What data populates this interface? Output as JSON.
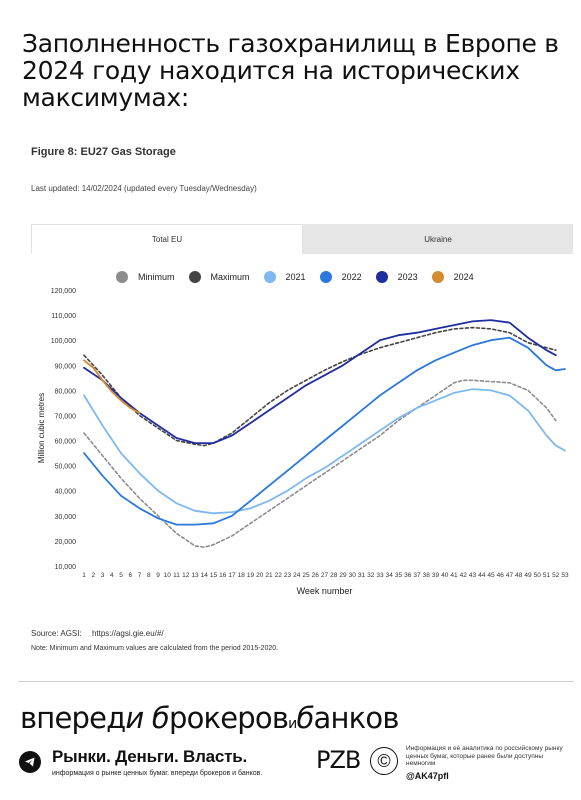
{
  "headline": "Заполненность газохранилищ в Европе в 2024 году находится на исторических максимумах:",
  "figure": {
    "title": "Figure 8: EU27 Gas Storage",
    "last_updated": "Last updated: 14/02/2024  (updated every Tuesday/Wednesday)",
    "tabs": [
      {
        "label": "Total EU",
        "active": true
      },
      {
        "label": "Ukraine",
        "active": false
      }
    ],
    "source_label": "Source: AGSI:",
    "source_url": "https://agsi.gie.eu/#/",
    "note": "Note: Minimum and Maximum values are calculated from the period 2015-2020."
  },
  "chart_data": {
    "type": "line",
    "xlabel": "Week number",
    "ylabel": "Million cubic metres",
    "xlim": [
      1,
      53
    ],
    "ylim": [
      10000,
      120000
    ],
    "yticks": [
      "120,000",
      "110,000",
      "100,000",
      "90,000",
      "80,000",
      "70,000",
      "60,000",
      "50,000",
      "40,000",
      "30,000",
      "20,000",
      "10,000"
    ],
    "grid": false,
    "legend_position": "top",
    "series": [
      {
        "name": "Minimum",
        "color": "#8c8c8c",
        "dashed": true,
        "points": [
          [
            1,
            63000
          ],
          [
            3,
            54000
          ],
          [
            5,
            45000
          ],
          [
            7,
            37000
          ],
          [
            9,
            30000
          ],
          [
            11,
            23000
          ],
          [
            13,
            18000
          ],
          [
            14,
            17500
          ],
          [
            15,
            18500
          ],
          [
            17,
            22000
          ],
          [
            19,
            27000
          ],
          [
            21,
            32000
          ],
          [
            23,
            37000
          ],
          [
            25,
            42000
          ],
          [
            27,
            47000
          ],
          [
            29,
            52000
          ],
          [
            31,
            57000
          ],
          [
            33,
            62000
          ],
          [
            35,
            68000
          ],
          [
            37,
            73000
          ],
          [
            39,
            78000
          ],
          [
            41,
            83000
          ],
          [
            42,
            84000
          ],
          [
            43,
            84000
          ],
          [
            45,
            83500
          ],
          [
            47,
            83000
          ],
          [
            49,
            80000
          ],
          [
            51,
            73000
          ],
          [
            52,
            68000
          ]
        ]
      },
      {
        "name": "Maximum",
        "color": "#444444",
        "dashed": true,
        "points": [
          [
            1,
            94000
          ],
          [
            3,
            86000
          ],
          [
            5,
            77000
          ],
          [
            7,
            70000
          ],
          [
            9,
            65000
          ],
          [
            11,
            60000
          ],
          [
            13,
            58500
          ],
          [
            14,
            58000
          ],
          [
            15,
            59000
          ],
          [
            17,
            63000
          ],
          [
            19,
            69000
          ],
          [
            21,
            75000
          ],
          [
            23,
            80000
          ],
          [
            25,
            84000
          ],
          [
            27,
            88000
          ],
          [
            29,
            91500
          ],
          [
            31,
            94500
          ],
          [
            33,
            97000
          ],
          [
            35,
            99000
          ],
          [
            37,
            101000
          ],
          [
            39,
            103000
          ],
          [
            41,
            104500
          ],
          [
            43,
            105000
          ],
          [
            45,
            104500
          ],
          [
            47,
            103000
          ],
          [
            49,
            99000
          ],
          [
            51,
            97000
          ],
          [
            52,
            96000
          ]
        ]
      },
      {
        "name": "2021",
        "color": "#7db9ef",
        "dashed": false,
        "points": [
          [
            1,
            78000
          ],
          [
            3,
            66000
          ],
          [
            5,
            55000
          ],
          [
            7,
            47000
          ],
          [
            9,
            40000
          ],
          [
            11,
            35000
          ],
          [
            13,
            32000
          ],
          [
            15,
            31000
          ],
          [
            17,
            31500
          ],
          [
            19,
            33000
          ],
          [
            21,
            36000
          ],
          [
            23,
            40000
          ],
          [
            25,
            45000
          ],
          [
            27,
            49000
          ],
          [
            29,
            54000
          ],
          [
            31,
            59000
          ],
          [
            33,
            64000
          ],
          [
            35,
            69000
          ],
          [
            37,
            73000
          ],
          [
            39,
            76000
          ],
          [
            41,
            79000
          ],
          [
            43,
            80500
          ],
          [
            45,
            80000
          ],
          [
            47,
            78000
          ],
          [
            49,
            72000
          ],
          [
            51,
            62000
          ],
          [
            52,
            58000
          ],
          [
            53,
            56000
          ]
        ]
      },
      {
        "name": "2022",
        "color": "#2a78dd",
        "dashed": false,
        "points": [
          [
            1,
            55000
          ],
          [
            3,
            46000
          ],
          [
            5,
            38000
          ],
          [
            7,
            33000
          ],
          [
            9,
            29000
          ],
          [
            11,
            26500
          ],
          [
            13,
            26500
          ],
          [
            15,
            27000
          ],
          [
            17,
            30000
          ],
          [
            19,
            36000
          ],
          [
            21,
            42000
          ],
          [
            23,
            48000
          ],
          [
            25,
            54000
          ],
          [
            27,
            60000
          ],
          [
            29,
            66000
          ],
          [
            31,
            72000
          ],
          [
            33,
            78000
          ],
          [
            35,
            83000
          ],
          [
            37,
            88000
          ],
          [
            39,
            92000
          ],
          [
            41,
            95000
          ],
          [
            43,
            98000
          ],
          [
            45,
            100000
          ],
          [
            47,
            101000
          ],
          [
            49,
            97000
          ],
          [
            51,
            90000
          ],
          [
            52,
            88000
          ],
          [
            53,
            88500
          ]
        ]
      },
      {
        "name": "2023",
        "color": "#1f2d9e",
        "dashed": false,
        "points": [
          [
            1,
            89000
          ],
          [
            3,
            84000
          ],
          [
            5,
            77000
          ],
          [
            7,
            71000
          ],
          [
            9,
            66000
          ],
          [
            11,
            61000
          ],
          [
            13,
            59000
          ],
          [
            15,
            59000
          ],
          [
            17,
            62000
          ],
          [
            19,
            67000
          ],
          [
            21,
            72000
          ],
          [
            23,
            77000
          ],
          [
            25,
            82000
          ],
          [
            27,
            86000
          ],
          [
            29,
            90000
          ],
          [
            31,
            95000
          ],
          [
            33,
            100000
          ],
          [
            35,
            102000
          ],
          [
            37,
            103000
          ],
          [
            39,
            104500
          ],
          [
            41,
            106000
          ],
          [
            43,
            107500
          ],
          [
            45,
            108000
          ],
          [
            47,
            107000
          ],
          [
            49,
            101000
          ],
          [
            51,
            96000
          ],
          [
            52,
            94000
          ]
        ]
      },
      {
        "name": "2024",
        "color": "#d48a2e",
        "dashed": false,
        "points": [
          [
            1,
            92000
          ],
          [
            2,
            89000
          ],
          [
            3,
            84000
          ],
          [
            4,
            79500
          ],
          [
            5,
            76000
          ],
          [
            6,
            73000
          ],
          [
            7,
            71000
          ]
        ]
      }
    ]
  },
  "footer": {
    "wordmark_main": "вперед",
    "wordmark_script1": "и б",
    "wordmark_mid": "рокеров",
    "wordmark_and": "и",
    "wordmark_script2": "б",
    "wordmark_end": "анков",
    "brand": "Рынки. Деньги. Власть.",
    "brand_sub": "информация о рынке ценных бумаг. впереди брокеров и банков.",
    "logo": "РZВ",
    "disclaimer": "Информация и её аналитика по российскому рынку ценных бумаг, которые ранее были доступны немногим",
    "handle": "@AK47pfl"
  }
}
